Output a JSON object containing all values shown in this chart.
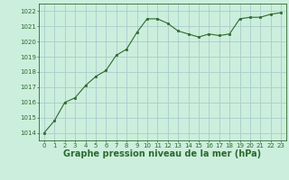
{
  "x": [
    0,
    1,
    2,
    3,
    4,
    5,
    6,
    7,
    8,
    9,
    10,
    11,
    12,
    13,
    14,
    15,
    16,
    17,
    18,
    19,
    20,
    21,
    22,
    23
  ],
  "y": [
    1014.0,
    1014.8,
    1016.0,
    1016.3,
    1017.1,
    1017.7,
    1018.1,
    1019.1,
    1019.5,
    1020.6,
    1021.5,
    1021.5,
    1021.2,
    1020.7,
    1020.5,
    1020.3,
    1020.5,
    1020.4,
    1020.5,
    1021.5,
    1021.6,
    1021.6,
    1021.8,
    1021.9
  ],
  "line_color": "#2d6a2d",
  "marker": "s",
  "marker_size": 2.0,
  "bg_color": "#cceedd",
  "grid_color": "#aacccc",
  "xlabel": "Graphe pression niveau de la mer (hPa)",
  "xlabel_color": "#2d6a2d",
  "tick_color": "#2d6a2d",
  "ylim": [
    1013.5,
    1022.5
  ],
  "xlim": [
    -0.5,
    23.5
  ],
  "yticks": [
    1014,
    1015,
    1016,
    1017,
    1018,
    1019,
    1020,
    1021,
    1022
  ],
  "xticks": [
    0,
    1,
    2,
    3,
    4,
    5,
    6,
    7,
    8,
    9,
    10,
    11,
    12,
    13,
    14,
    15,
    16,
    17,
    18,
    19,
    20,
    21,
    22,
    23
  ],
  "tick_fontsize": 5.0,
  "xlabel_fontsize": 7.0
}
